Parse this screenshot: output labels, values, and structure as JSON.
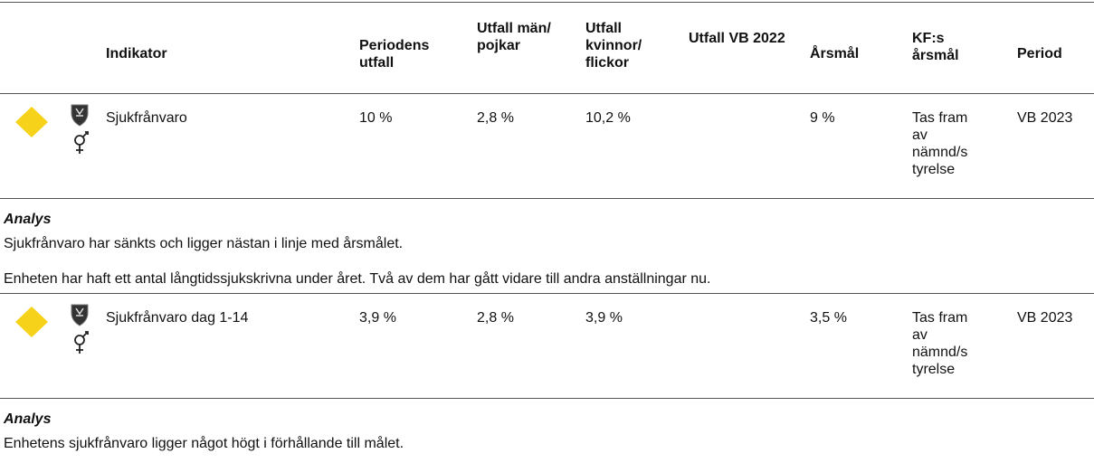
{
  "table": {
    "headers": [
      "Indikator",
      "Periodens utfall",
      "Utfall män/ pojkar",
      "Utfall kvinnor/ flickor",
      "Utfall VB 2022",
      "Årsmål",
      "KF:s årsmål",
      "Period"
    ],
    "rows": [
      {
        "cells": [
          "Sjukfrånvaro",
          "10 %",
          "2,8 %",
          "10,2 %",
          "",
          "9 %",
          "Tas fram av nämnd/styrelse",
          "VB 2023"
        ],
        "analysis": {
          "title": "Analys",
          "lines": [
            "Sjukfrånvaro har sänkts och ligger nästan i linje med årsmålet.",
            "Enheten har haft ett antal långtidssjukskrivna under året. Två av dem har gått vidare till andra anställningar nu."
          ]
        }
      },
      {
        "cells": [
          "Sjukfrånvaro dag 1-14",
          "3,9 %",
          "2,8 %",
          "3,9 %",
          "",
          "3,5 %",
          "Tas fram av nämnd/styrelse",
          "VB 2023"
        ],
        "analysis": {
          "title": "Analys",
          "lines": [
            "Enhetens sjukfrånvaro ligger något högt i förhållande till målet."
          ]
        }
      }
    ]
  }
}
